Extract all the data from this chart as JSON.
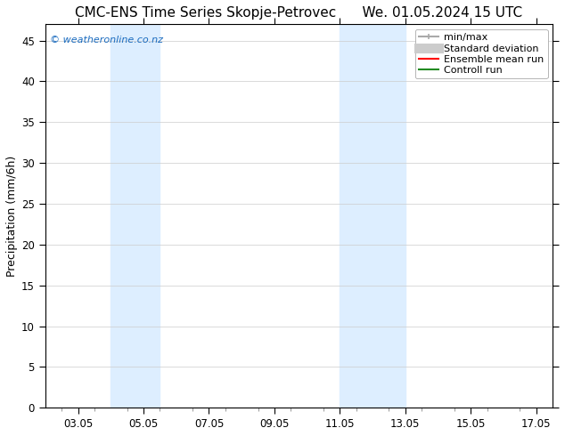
{
  "title_left": "CMC-ENS Time Series Skopje-Petrovec",
  "title_right": "We. 01.05.2024 15 UTC",
  "ylabel": "Precipitation (mm/6h)",
  "copyright_text": "© weatheronline.co.nz",
  "ylim": [
    0,
    47
  ],
  "y_ticks": [
    0,
    5,
    10,
    15,
    20,
    25,
    30,
    35,
    40,
    45
  ],
  "x_tick_days": [
    3,
    5,
    7,
    9,
    11,
    13,
    15,
    17
  ],
  "x_tick_labels": [
    "03.05",
    "05.05",
    "07.05",
    "09.05",
    "11.05",
    "13.05",
    "15.05",
    "17.05"
  ],
  "xlim_start_day": 2,
  "xlim_end_day": 17,
  "shaded_bands": [
    {
      "day_start": 4.0,
      "day_end": 5.0,
      "color": "#ddeeff"
    },
    {
      "day_start": 5.0,
      "day_end": 5.5,
      "color": "#ddeeff"
    },
    {
      "day_start": 11.0,
      "day_end": 11.5,
      "color": "#ddeeff"
    },
    {
      "day_start": 11.5,
      "day_end": 13.0,
      "color": "#ddeeff"
    }
  ],
  "legend_entries": [
    {
      "label": "min/max",
      "color": "#aaaaaa",
      "lw": 1.5
    },
    {
      "label": "Standard deviation",
      "color": "#cccccc",
      "lw": 8
    },
    {
      "label": "Ensemble mean run",
      "color": "#ff0000",
      "lw": 1.5
    },
    {
      "label": "Controll run",
      "color": "#228B22",
      "lw": 1.5
    }
  ],
  "bg_color": "#ffffff",
  "plot_bg_color": "#ffffff",
  "border_color": "#000000",
  "grid_color": "#cccccc",
  "title_fontsize": 11,
  "axis_label_fontsize": 9,
  "tick_label_fontsize": 8.5,
  "copyright_fontsize": 8,
  "legend_fontsize": 8
}
